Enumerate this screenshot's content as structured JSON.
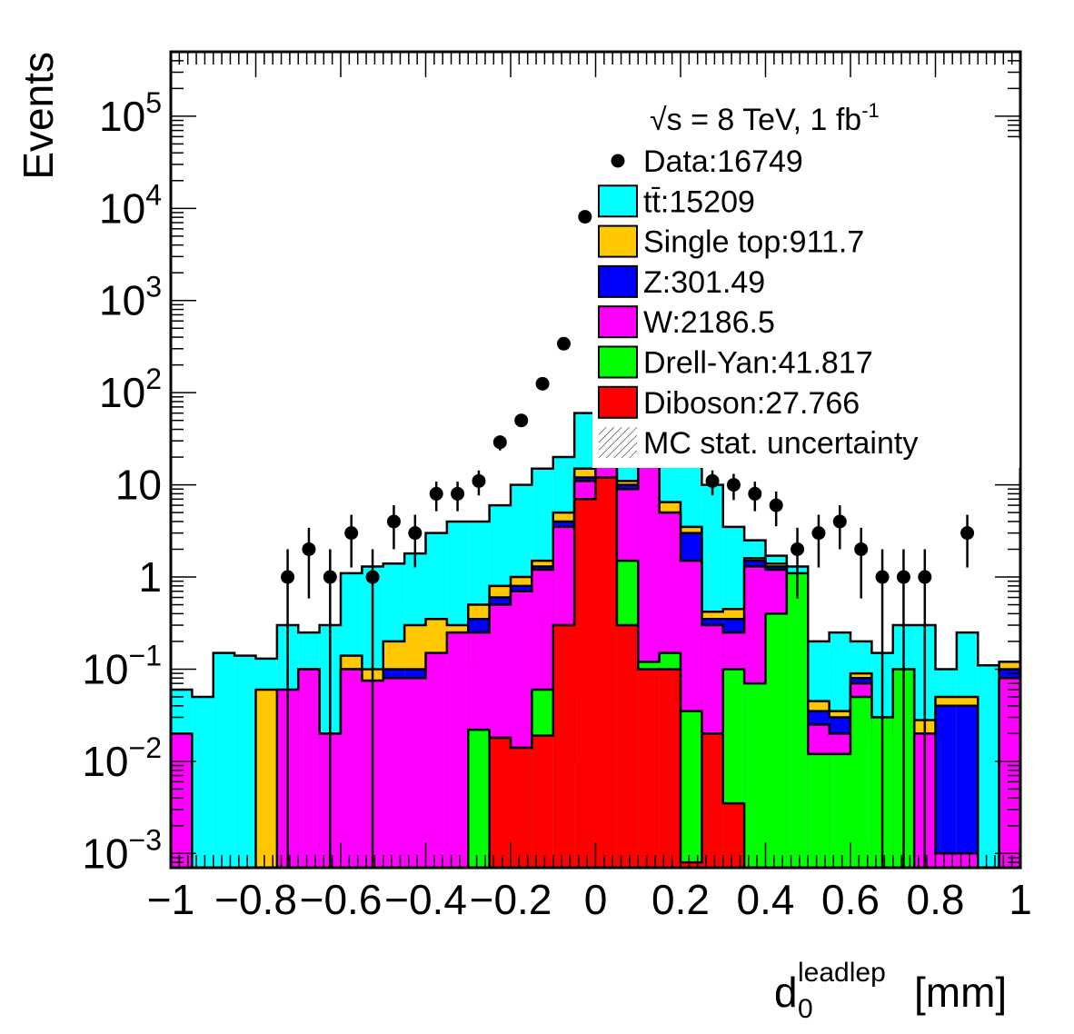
{
  "chart_data": {
    "type": "bar",
    "stacked": true,
    "log_y": true,
    "xlabel_main": "d",
    "xlabel_sub": "0",
    "xlabel_sup": "leadlep",
    "xlabel_unit": "[mm]",
    "ylabel": "Events",
    "xlim": [
      -1,
      1
    ],
    "ylim": [
      0.0007,
      500000
    ],
    "grid": false,
    "legend_position": "top-right",
    "bin_edges": [
      -1.0,
      -0.95,
      -0.9,
      -0.85,
      -0.8,
      -0.75,
      -0.7,
      -0.65,
      -0.6,
      -0.55,
      -0.5,
      -0.45,
      -0.4,
      -0.35,
      -0.3,
      -0.25,
      -0.2,
      -0.15,
      -0.1,
      -0.05,
      0.0,
      0.05,
      0.1,
      0.15,
      0.2,
      0.25,
      0.3,
      0.35,
      0.4,
      0.45,
      0.5,
      0.55,
      0.6,
      0.65,
      0.7,
      0.75,
      0.8,
      0.85,
      0.9,
      0.95,
      1.0
    ],
    "x_ticks": [
      {
        "value": -1,
        "label": "−1"
      },
      {
        "value": -0.8,
        "label": "−0.8"
      },
      {
        "value": -0.6,
        "label": "−0.6"
      },
      {
        "value": -0.4,
        "label": "−0.4"
      },
      {
        "value": -0.2,
        "label": "−0.2"
      },
      {
        "value": 0,
        "label": "0"
      },
      {
        "value": 0.2,
        "label": "0.2"
      },
      {
        "value": 0.4,
        "label": "0.4"
      },
      {
        "value": 0.6,
        "label": "0.6"
      },
      {
        "value": 0.8,
        "label": "0.8"
      },
      {
        "value": 1,
        "label": "1"
      }
    ],
    "y_ticks": [
      {
        "value": 0.001,
        "base": "10",
        "exp": "−3"
      },
      {
        "value": 0.01,
        "base": "10",
        "exp": "−2"
      },
      {
        "value": 0.1,
        "base": "10",
        "exp": "−1"
      },
      {
        "value": 1,
        "base": "1",
        "exp": ""
      },
      {
        "value": 10,
        "base": "10",
        "exp": ""
      },
      {
        "value": 100,
        "base": "10",
        "exp": "2"
      },
      {
        "value": 1000,
        "base": "10",
        "exp": "3"
      },
      {
        "value": 10000,
        "base": "10",
        "exp": "4"
      },
      {
        "value": 100000,
        "base": "10",
        "exp": "5"
      }
    ],
    "series_stacked_totals": [
      {
        "name": "Diboson",
        "color": "#ff0000",
        "values": [
          0,
          0,
          0,
          0,
          0,
          0,
          0,
          0,
          0,
          0,
          0,
          0,
          0,
          0,
          0,
          0.018,
          0.014,
          0.019,
          0.3,
          7,
          12,
          0.3,
          0.1,
          0.1,
          0.0008,
          0.02,
          0.0035,
          0,
          0,
          0,
          0,
          0,
          0,
          0,
          0,
          0,
          0,
          0,
          0,
          0
        ]
      },
      {
        "name": "Drell-Yan",
        "color": "#00ff00",
        "values": [
          0,
          0,
          0,
          0,
          0,
          0,
          0,
          0,
          0,
          0,
          0,
          0,
          0,
          0,
          0.022,
          0.018,
          0.014,
          0.06,
          0.05,
          0.01,
          0.3,
          1.5,
          0.12,
          0.15,
          0.035,
          0.02,
          0.1,
          0.07,
          0.4,
          1.1,
          0.012,
          0.012,
          0.05,
          0.03,
          0.1,
          0,
          0,
          0,
          0,
          0
        ]
      },
      {
        "name": "W",
        "color": "#ff00ff",
        "values": [
          0.02,
          0,
          0,
          0,
          0,
          0.06,
          0.1,
          0.02,
          0.1,
          0.075,
          0.08,
          0.08,
          0.15,
          0.25,
          0.25,
          0.5,
          0.7,
          1.2,
          3.5,
          11,
          20,
          9,
          20,
          5,
          1.5,
          0.3,
          0.25,
          1.3,
          1.2,
          0.8,
          0.025,
          0.02,
          0.07,
          0.02,
          0.08,
          0.02,
          0.001,
          0.001,
          0,
          0.08
        ]
      },
      {
        "name": "Z",
        "color": "#0000ff",
        "values": [
          0,
          0,
          0,
          0,
          0,
          0,
          0.1,
          0,
          0.1,
          0.075,
          0.1,
          0.1,
          0.1,
          0.11,
          0.35,
          0.6,
          0.8,
          1.3,
          4,
          12,
          25,
          10,
          25,
          5,
          3,
          0.35,
          0.35,
          1.5,
          1.3,
          0.9,
          0.035,
          0.03,
          0.08,
          0.025,
          0.095,
          0.02,
          0.04,
          0.04,
          0,
          0.1
        ]
      },
      {
        "name": "Single top",
        "color": "#ffc800",
        "values": [
          0,
          0,
          0,
          0,
          0.06,
          0.055,
          0.1,
          0.02,
          0.14,
          0.1,
          0.2,
          0.3,
          0.35,
          0.3,
          0.5,
          0.8,
          1.0,
          1.5,
          5,
          15,
          30,
          11,
          30,
          6.5,
          3.5,
          0.42,
          0.45,
          1.6,
          1.4,
          0.95,
          0.045,
          0.035,
          0.09,
          0.03,
          0.1,
          0.028,
          0.05,
          0.05,
          0,
          0.12
        ]
      },
      {
        "name": "tt̄",
        "color": "#00ffff",
        "values": [
          0.06,
          0.05,
          0.15,
          0.14,
          0.13,
          0.3,
          0.25,
          0.3,
          1.1,
          1.3,
          1.4,
          1.8,
          3,
          4,
          4,
          6,
          10,
          15,
          20,
          60,
          100,
          2000,
          8000,
          40,
          20,
          10,
          3.5,
          2.5,
          1.7,
          1.3,
          0.2,
          0.25,
          0.2,
          0.15,
          0.3,
          0.3,
          0.1,
          0.25,
          0.11,
          0.11
        ]
      }
    ],
    "data_points": [
      {
        "x": -0.725,
        "y": 1
      },
      {
        "x": -0.675,
        "y": 2
      },
      {
        "x": -0.625,
        "y": 1
      },
      {
        "x": -0.575,
        "y": 3
      },
      {
        "x": -0.525,
        "y": 1
      },
      {
        "x": -0.475,
        "y": 4
      },
      {
        "x": -0.425,
        "y": 3
      },
      {
        "x": -0.375,
        "y": 8
      },
      {
        "x": -0.325,
        "y": 8
      },
      {
        "x": -0.275,
        "y": 11
      },
      {
        "x": -0.225,
        "y": 29
      },
      {
        "x": -0.175,
        "y": 50
      },
      {
        "x": -0.125,
        "y": 125
      },
      {
        "x": -0.075,
        "y": 340
      },
      {
        "x": -0.025,
        "y": 8100
      },
      {
        "x": 0.275,
        "y": 11
      },
      {
        "x": 0.325,
        "y": 10
      },
      {
        "x": 0.375,
        "y": 8
      },
      {
        "x": 0.425,
        "y": 6
      },
      {
        "x": 0.475,
        "y": 2
      },
      {
        "x": 0.525,
        "y": 3
      },
      {
        "x": 0.575,
        "y": 4
      },
      {
        "x": 0.625,
        "y": 2
      },
      {
        "x": 0.675,
        "y": 1
      },
      {
        "x": 0.725,
        "y": 1
      },
      {
        "x": 0.775,
        "y": 1
      },
      {
        "x": 0.875,
        "y": 3
      }
    ],
    "legend": {
      "header": "√s = 8 TeV, 1 fb",
      "header_sup": "-1",
      "entries": [
        {
          "kind": "marker",
          "label": "Data:16749",
          "color": "#000000"
        },
        {
          "kind": "box",
          "label": "tt̄:15209",
          "color": "#00ffff"
        },
        {
          "kind": "box",
          "label": "Single top:911.7",
          "color": "#ffc800"
        },
        {
          "kind": "box",
          "label": "Z:301.49",
          "color": "#0000ff"
        },
        {
          "kind": "box",
          "label": "W:2186.5",
          "color": "#ff00ff"
        },
        {
          "kind": "box",
          "label": "Drell-Yan:41.817",
          "color": "#00ff00"
        },
        {
          "kind": "box",
          "label": "Diboson:27.766",
          "color": "#ff0000"
        },
        {
          "kind": "hatch",
          "label": "MC stat. uncertainty",
          "color": "#000000"
        }
      ]
    }
  }
}
